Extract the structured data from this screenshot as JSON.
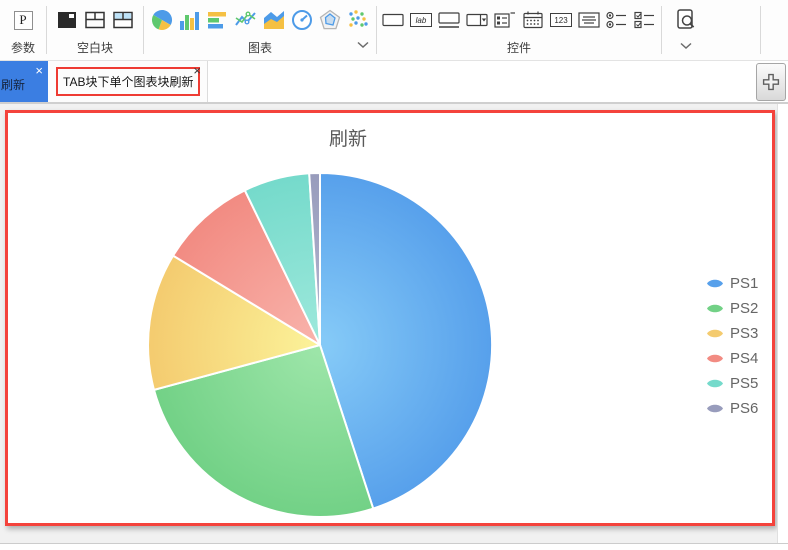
{
  "window": {
    "toolbar": {
      "groups": {
        "params": {
          "label": "参数"
        },
        "blank_blocks": {
          "label": "空白块"
        },
        "charts": {
          "label": "图表"
        },
        "widgets": {
          "label": "控件"
        }
      },
      "param_icon_letter": "P",
      "label_widget_text": "lab",
      "number_widget_text": "123"
    },
    "tab_bar": {
      "tabs": [
        {
          "label": "刷新",
          "active": true
        },
        {
          "label": "TAB块下单个图表块刷新",
          "active": false
        }
      ],
      "close_glyph": "×"
    }
  },
  "chart_data": {
    "type": "pie",
    "title": "刷新",
    "labels": [
      "PS1",
      "PS2",
      "PS3",
      "PS4",
      "PS5",
      "PS6"
    ],
    "values": [
      45,
      25.8,
      12.9,
      9.1,
      6.2,
      1.0
    ],
    "colors": [
      "#57A0EB",
      "#72D186",
      "#F4CB6F",
      "#F28B82",
      "#75DACB",
      "#989CBC"
    ],
    "colors_light": [
      "#84C9F7",
      "#9CE5A8",
      "#FBF198",
      "#F8B2AA",
      "#9CE8DB",
      "#B2B5CF"
    ],
    "legend_position": "right",
    "start_angle_deg": 0,
    "clockwise": true
  },
  "colors": {
    "active_tab_blue": "#3B7EE2",
    "annotation_red": "#EE3B33",
    "block_border_red": "#F4433C",
    "legend_text": "#666666",
    "title_text": "#595959"
  }
}
